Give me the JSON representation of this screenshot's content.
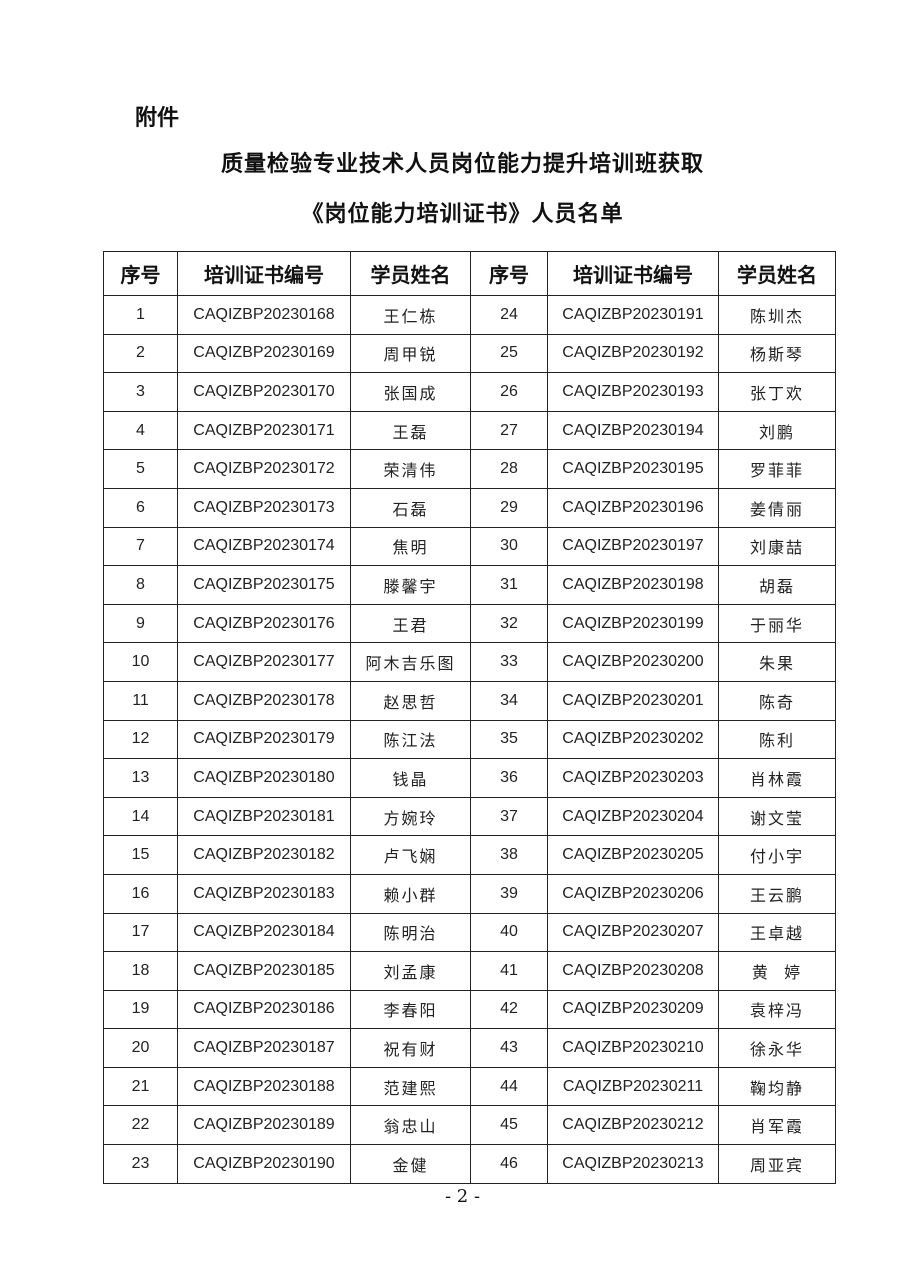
{
  "attachment_label": "附件",
  "title_line1": "质量检验专业技术人员岗位能力提升培训班获取",
  "title_line2": "《岗位能力培训证书》人员名单",
  "table": {
    "headers": [
      "序号",
      "培训证书编号",
      "学员姓名",
      "序号",
      "培训证书编号",
      "学员姓名"
    ],
    "rows": [
      [
        "1",
        "CAQIZBP20230168",
        "王仁栋",
        "24",
        "CAQIZBP20230191",
        "陈圳杰"
      ],
      [
        "2",
        "CAQIZBP20230169",
        "周甲锐",
        "25",
        "CAQIZBP20230192",
        "杨斯琴"
      ],
      [
        "3",
        "CAQIZBP20230170",
        "张国成",
        "26",
        "CAQIZBP20230193",
        "张丁欢"
      ],
      [
        "4",
        "CAQIZBP20230171",
        "王磊",
        "27",
        "CAQIZBP20230194",
        "刘鹏"
      ],
      [
        "5",
        "CAQIZBP20230172",
        "荣清伟",
        "28",
        "CAQIZBP20230195",
        "罗菲菲"
      ],
      [
        "6",
        "CAQIZBP20230173",
        "石磊",
        "29",
        "CAQIZBP20230196",
        "姜倩丽"
      ],
      [
        "7",
        "CAQIZBP20230174",
        "焦明",
        "30",
        "CAQIZBP20230197",
        "刘康喆"
      ],
      [
        "8",
        "CAQIZBP20230175",
        "滕馨宇",
        "31",
        "CAQIZBP20230198",
        "胡磊"
      ],
      [
        "9",
        "CAQIZBP20230176",
        "王君",
        "32",
        "CAQIZBP20230199",
        "于丽华"
      ],
      [
        "10",
        "CAQIZBP20230177",
        "阿木吉乐图",
        "33",
        "CAQIZBP20230200",
        "朱果"
      ],
      [
        "11",
        "CAQIZBP20230178",
        "赵思哲",
        "34",
        "CAQIZBP20230201",
        "陈奇"
      ],
      [
        "12",
        "CAQIZBP20230179",
        "陈江法",
        "35",
        "CAQIZBP20230202",
        "陈利"
      ],
      [
        "13",
        "CAQIZBP20230180",
        "钱晶",
        "36",
        "CAQIZBP20230203",
        "肖林霞"
      ],
      [
        "14",
        "CAQIZBP20230181",
        "方婉玲",
        "37",
        "CAQIZBP20230204",
        "谢文莹"
      ],
      [
        "15",
        "CAQIZBP20230182",
        "卢飞娴",
        "38",
        "CAQIZBP20230205",
        "付小宇"
      ],
      [
        "16",
        "CAQIZBP20230183",
        "赖小群",
        "39",
        "CAQIZBP20230206",
        "王云鹏"
      ],
      [
        "17",
        "CAQIZBP20230184",
        "陈明治",
        "40",
        "CAQIZBP20230207",
        "王卓越"
      ],
      [
        "18",
        "CAQIZBP20230185",
        "刘孟康",
        "41",
        "CAQIZBP20230208",
        "黄  婷"
      ],
      [
        "19",
        "CAQIZBP20230186",
        "李春阳",
        "42",
        "CAQIZBP20230209",
        "袁梓冯"
      ],
      [
        "20",
        "CAQIZBP20230187",
        "祝有财",
        "43",
        "CAQIZBP20230210",
        "徐永华"
      ],
      [
        "21",
        "CAQIZBP20230188",
        "范建熙",
        "44",
        "CAQIZBP20230211",
        "鞠均静"
      ],
      [
        "22",
        "CAQIZBP20230189",
        "翁忠山",
        "45",
        "CAQIZBP20230212",
        "肖军霞"
      ],
      [
        "23",
        "CAQIZBP20230190",
        "金健",
        "46",
        "CAQIZBP20230213",
        "周亚宾"
      ]
    ]
  },
  "page_number": "- 2 -"
}
